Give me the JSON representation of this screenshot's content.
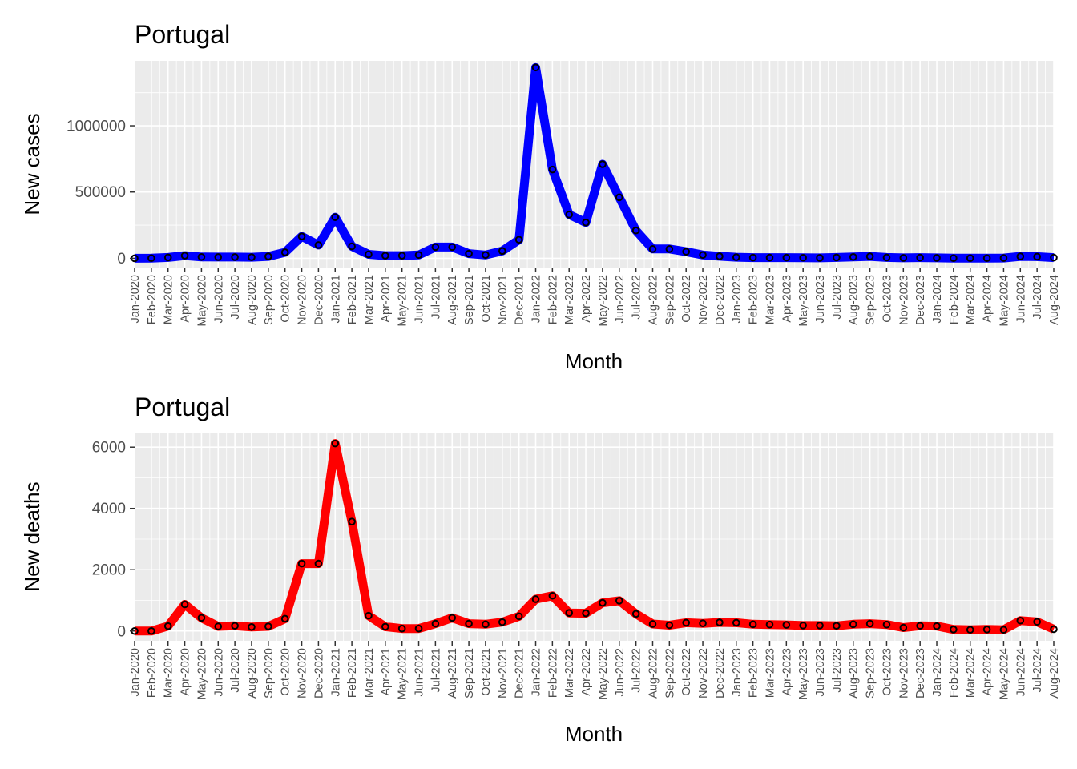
{
  "chart_data": [
    {
      "type": "line",
      "title": "Portugal",
      "xlabel": "Month",
      "ylabel": "New cases",
      "ylim": [
        -70000,
        1490000
      ],
      "yticks": [
        0,
        500000,
        1000000
      ],
      "ytick_labels": [
        "0",
        "500000",
        "1000000"
      ],
      "grid": true,
      "line_color": "#0000ff",
      "point_color": "#000000",
      "categories": [
        "Jan-2020",
        "Feb-2020",
        "Mar-2020",
        "Apr-2020",
        "May-2020",
        "Jun-2020",
        "Jul-2020",
        "Aug-2020",
        "Sep-2020",
        "Oct-2020",
        "Nov-2020",
        "Dec-2020",
        "Jan-2021",
        "Feb-2021",
        "Mar-2021",
        "Apr-2021",
        "May-2021",
        "Jun-2021",
        "Jul-2021",
        "Aug-2021",
        "Sep-2021",
        "Oct-2021",
        "Nov-2021",
        "Dec-2021",
        "Jan-2022",
        "Feb-2022",
        "Mar-2022",
        "Apr-2022",
        "May-2022",
        "Jun-2022",
        "Jul-2022",
        "Aug-2022",
        "Sep-2022",
        "Oct-2022",
        "Nov-2022",
        "Dec-2022",
        "Jan-2023",
        "Feb-2023",
        "Mar-2023",
        "Apr-2023",
        "May-2023",
        "Jun-2023",
        "Jul-2023",
        "Aug-2023",
        "Sep-2023",
        "Oct-2023",
        "Nov-2023",
        "Dec-2023",
        "Jan-2024",
        "Feb-2024",
        "Mar-2024",
        "Apr-2024",
        "May-2024",
        "Jun-2024",
        "Jul-2024",
        "Aug-2024"
      ],
      "values": [
        0,
        1000,
        6000,
        20000,
        10000,
        9000,
        9000,
        8000,
        14000,
        45000,
        165000,
        100000,
        310000,
        90000,
        30000,
        20000,
        20000,
        25000,
        85000,
        85000,
        35000,
        25000,
        55000,
        140000,
        1440000,
        670000,
        330000,
        270000,
        710000,
        460000,
        210000,
        70000,
        70000,
        50000,
        25000,
        15000,
        8000,
        5000,
        5000,
        5000,
        4000,
        3000,
        6000,
        10000,
        14000,
        6000,
        3000,
        5000,
        3000,
        1000,
        1000,
        1000,
        2000,
        14000,
        12000,
        5000
      ]
    },
    {
      "type": "line",
      "title": "Portugal",
      "xlabel": "Month",
      "ylabel": "New deaths",
      "ylim": [
        -320,
        6450
      ],
      "yticks": [
        0,
        2000,
        4000,
        6000
      ],
      "ytick_labels": [
        "0",
        "2000",
        "4000",
        "6000"
      ],
      "grid": true,
      "line_color": "#ff0000",
      "point_color": "#000000",
      "categories": [
        "Jan-2020",
        "Feb-2020",
        "Mar-2020",
        "Apr-2020",
        "May-2020",
        "Jun-2020",
        "Jul-2020",
        "Aug-2020",
        "Sep-2020",
        "Oct-2020",
        "Nov-2020",
        "Dec-2020",
        "Jan-2021",
        "Feb-2021",
        "Mar-2021",
        "Apr-2021",
        "May-2021",
        "Jun-2021",
        "Jul-2021",
        "Aug-2021",
        "Sep-2021",
        "Oct-2021",
        "Nov-2021",
        "Dec-2021",
        "Jan-2022",
        "Feb-2022",
        "Mar-2022",
        "Apr-2022",
        "May-2022",
        "Jun-2022",
        "Jul-2022",
        "Aug-2022",
        "Sep-2022",
        "Oct-2022",
        "Nov-2022",
        "Dec-2022",
        "Jan-2023",
        "Feb-2023",
        "Mar-2023",
        "Apr-2023",
        "May-2023",
        "Jun-2023",
        "Jul-2023",
        "Aug-2023",
        "Sep-2023",
        "Oct-2023",
        "Nov-2023",
        "Dec-2023",
        "Jan-2024",
        "Feb-2024",
        "Mar-2024",
        "Apr-2024",
        "May-2024",
        "Jun-2024",
        "Jul-2024",
        "Aug-2024"
      ],
      "values": [
        0,
        0,
        160,
        870,
        430,
        150,
        170,
        130,
        150,
        400,
        2200,
        2200,
        6120,
        3570,
        500,
        140,
        80,
        80,
        240,
        430,
        240,
        220,
        290,
        480,
        1040,
        1150,
        590,
        580,
        920,
        990,
        560,
        230,
        190,
        270,
        250,
        280,
        270,
        220,
        210,
        200,
        180,
        180,
        170,
        220,
        240,
        210,
        110,
        170,
        160,
        50,
        40,
        50,
        40,
        340,
        300,
        60
      ]
    }
  ]
}
